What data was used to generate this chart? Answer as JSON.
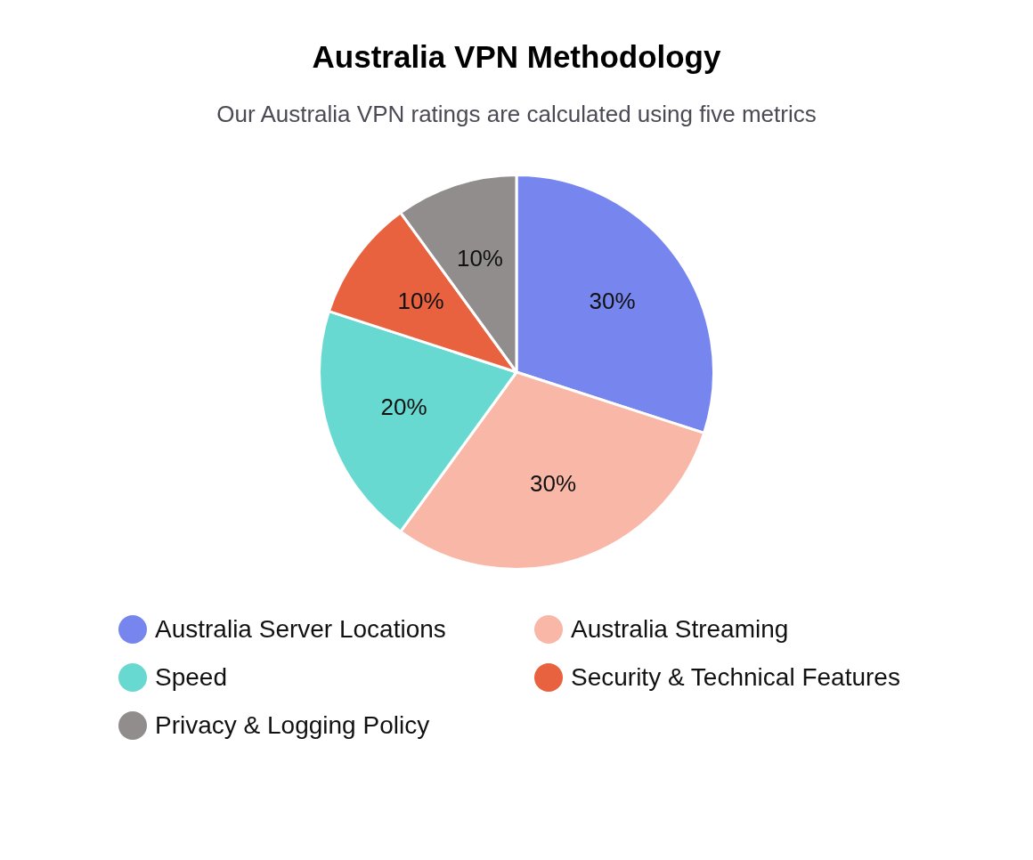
{
  "chart_data": {
    "type": "pie",
    "title": "Australia VPN Methodology",
    "subtitle": "Our Australia VPN ratings are calculated using five metrics",
    "categories": [
      "Australia Server Locations",
      "Australia Streaming",
      "Speed",
      "Security & Technical Features",
      "Privacy & Logging Policy"
    ],
    "values": [
      30,
      30,
      20,
      10,
      10
    ],
    "value_labels": [
      "30%",
      "30%",
      "20%",
      "10%",
      "10%"
    ],
    "colors": [
      "#7786ef",
      "#f9b8a7",
      "#67d9d0",
      "#e9623f",
      "#918d8c"
    ],
    "legend": "bottom"
  }
}
